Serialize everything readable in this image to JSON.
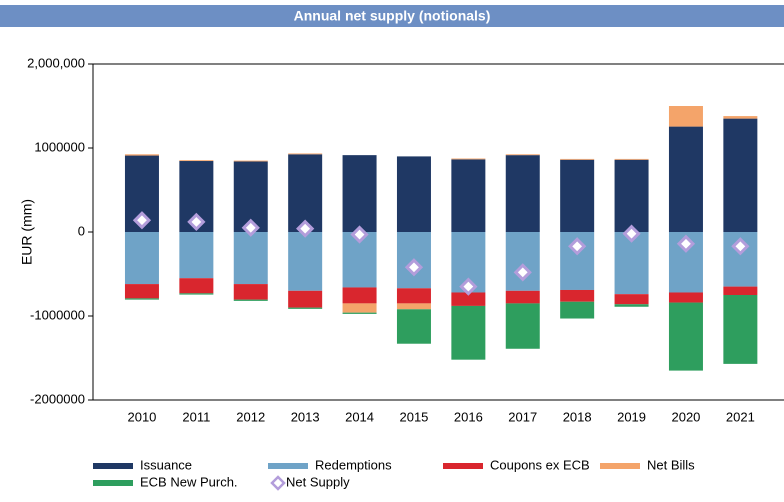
{
  "chart_data": {
    "type": "stacked-bar",
    "title": "Annual net supply (notionals)",
    "y_label": "EUR (mm)",
    "categories": [
      "2010",
      "2011",
      "2012",
      "2013",
      "2014",
      "2015",
      "2016",
      "2017",
      "2018",
      "2019",
      "2020",
      "2021"
    ],
    "ylim": [
      -2000000,
      2000000
    ],
    "yticks": [
      {
        "value": 2000000,
        "label": "2,000,000"
      },
      1000000,
      0,
      -1000000,
      -2000000
    ],
    "series": [
      {
        "name": "Issuance",
        "color": "#1f3864",
        "values": [
          910000,
          845000,
          840000,
          925000,
          915000,
          900000,
          865000,
          915000,
          860000,
          860000,
          1255000,
          1350000
        ]
      },
      {
        "name": "Redemptions",
        "color": "#6fa3c7",
        "values": [
          -620000,
          -550000,
          -620000,
          -700000,
          -660000,
          -670000,
          -720000,
          -700000,
          -690000,
          -740000,
          -720000,
          -650000
        ]
      },
      {
        "name": "Coupons ex ECB",
        "color": "#d9262e",
        "values": [
          -170000,
          -180000,
          -185000,
          -200000,
          -190000,
          -180000,
          -160000,
          -150000,
          -140000,
          -120000,
          -120000,
          -100000
        ]
      },
      {
        "name": "Net Bills",
        "color": "#f4a46a",
        "values": [
          15000,
          10000,
          10000,
          10000,
          -110000,
          -70000,
          10000,
          10000,
          10000,
          10000,
          245000,
          30000
        ]
      },
      {
        "name": "ECB New Purch.",
        "color": "#2e9e5e",
        "values": [
          -15000,
          -15000,
          -15000,
          -15000,
          -15000,
          -410000,
          -640000,
          -540000,
          -200000,
          -30000,
          -810000,
          -820000
        ]
      },
      {
        "name": "Net Supply",
        "color": "#b39ddb",
        "marker": "diamond",
        "values": [
          140000,
          120000,
          50000,
          40000,
          -30000,
          -420000,
          -650000,
          -480000,
          -170000,
          -20000,
          -140000,
          -170000
        ]
      }
    ]
  }
}
